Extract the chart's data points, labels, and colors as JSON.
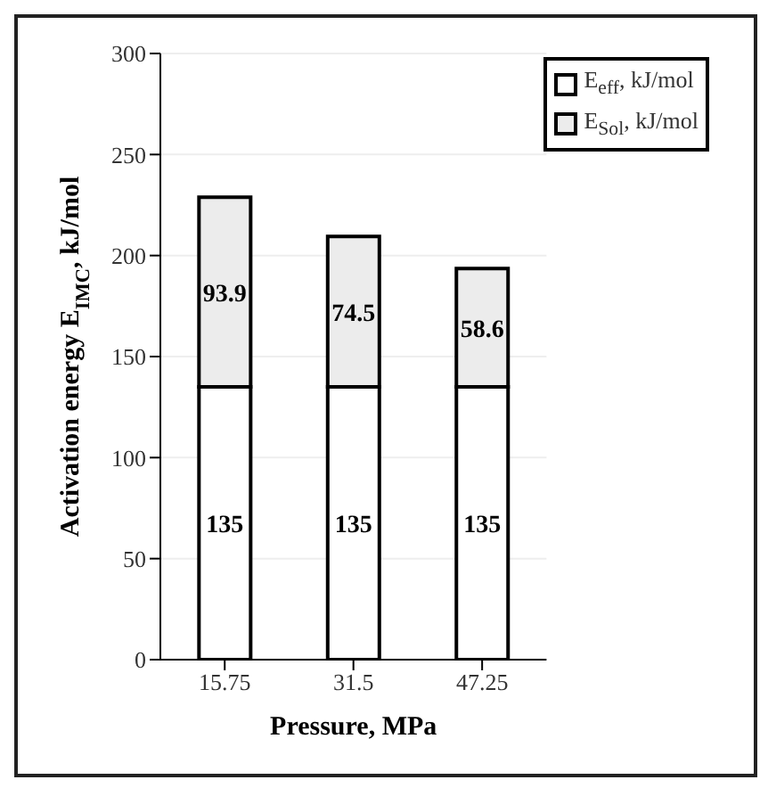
{
  "chart_data": {
    "type": "bar",
    "stacked": true,
    "xlabel": "Pressure, MPa",
    "ylabel": "Activation energy E$_{IMC}$, kJ/mol",
    "categories": [
      "15.75",
      "31.5",
      "47.25"
    ],
    "series": [
      {
        "name": "E$_{eff}$, kJ/mol",
        "color": "#ffffff",
        "values": [
          135,
          135,
          135
        ]
      },
      {
        "name": "E$_{Sol}$, kJ/mol",
        "color": "#ececec",
        "values": [
          93.9,
          74.5,
          58.6
        ]
      }
    ],
    "ylim": [
      0,
      300
    ],
    "yticks": [
      0,
      50,
      100,
      150,
      200,
      250,
      300
    ],
    "grid": "y",
    "legend": "top right",
    "data_labels": true
  }
}
